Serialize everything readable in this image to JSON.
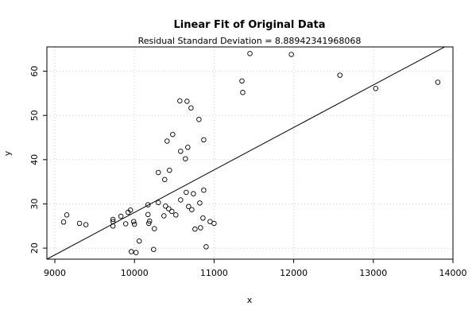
{
  "chart_data": {
    "type": "scatter",
    "title": "Linear Fit of Original Data",
    "subtitle": "Residual Standard Deviation =  8.88942341968068",
    "xlabel": "x",
    "ylabel": "y",
    "xlim": [
      8900,
      14000
    ],
    "ylim": [
      17.5,
      65.5
    ],
    "x_ticks": [
      9000,
      10000,
      11000,
      12000,
      13000,
      14000
    ],
    "y_ticks": [
      20,
      30,
      40,
      50,
      60
    ],
    "grid": true,
    "fit_line": {
      "x": [
        8900,
        14000
      ],
      "y": [
        17.5,
        66.5
      ]
    },
    "points": [
      {
        "x": 9110,
        "y": 25.9
      },
      {
        "x": 9150,
        "y": 27.5
      },
      {
        "x": 9310,
        "y": 25.6
      },
      {
        "x": 9390,
        "y": 25.3
      },
      {
        "x": 9730,
        "y": 26.5
      },
      {
        "x": 9730,
        "y": 26.0
      },
      {
        "x": 9730,
        "y": 25.0
      },
      {
        "x": 9830,
        "y": 27.2
      },
      {
        "x": 9890,
        "y": 25.5
      },
      {
        "x": 9920,
        "y": 28.1
      },
      {
        "x": 9950,
        "y": 28.6
      },
      {
        "x": 9960,
        "y": 19.2
      },
      {
        "x": 9990,
        "y": 26.0
      },
      {
        "x": 10000,
        "y": 25.4
      },
      {
        "x": 10020,
        "y": 19.0
      },
      {
        "x": 10060,
        "y": 21.6
      },
      {
        "x": 10170,
        "y": 29.8
      },
      {
        "x": 10170,
        "y": 27.6
      },
      {
        "x": 10180,
        "y": 25.6
      },
      {
        "x": 10190,
        "y": 26.1
      },
      {
        "x": 10240,
        "y": 19.7
      },
      {
        "x": 10250,
        "y": 24.4
      },
      {
        "x": 10300,
        "y": 37.1
      },
      {
        "x": 10300,
        "y": 30.3
      },
      {
        "x": 10370,
        "y": 27.3
      },
      {
        "x": 10380,
        "y": 35.5
      },
      {
        "x": 10390,
        "y": 29.5
      },
      {
        "x": 10410,
        "y": 44.2
      },
      {
        "x": 10430,
        "y": 28.9
      },
      {
        "x": 10440,
        "y": 37.6
      },
      {
        "x": 10470,
        "y": 28.3
      },
      {
        "x": 10480,
        "y": 45.7
      },
      {
        "x": 10520,
        "y": 27.5
      },
      {
        "x": 10570,
        "y": 53.3
      },
      {
        "x": 10580,
        "y": 30.9
      },
      {
        "x": 10580,
        "y": 41.9
      },
      {
        "x": 10640,
        "y": 40.2
      },
      {
        "x": 10650,
        "y": 32.6
      },
      {
        "x": 10660,
        "y": 53.2
      },
      {
        "x": 10670,
        "y": 42.8
      },
      {
        "x": 10680,
        "y": 29.4
      },
      {
        "x": 10710,
        "y": 51.7
      },
      {
        "x": 10720,
        "y": 28.7
      },
      {
        "x": 10740,
        "y": 32.3
      },
      {
        "x": 10760,
        "y": 24.3
      },
      {
        "x": 10810,
        "y": 49.1
      },
      {
        "x": 10820,
        "y": 30.2
      },
      {
        "x": 10830,
        "y": 24.6
      },
      {
        "x": 10860,
        "y": 26.8
      },
      {
        "x": 10870,
        "y": 33.1
      },
      {
        "x": 10870,
        "y": 44.5
      },
      {
        "x": 10900,
        "y": 20.3
      },
      {
        "x": 10950,
        "y": 26.0
      },
      {
        "x": 11000,
        "y": 25.6
      },
      {
        "x": 11350,
        "y": 57.8
      },
      {
        "x": 11360,
        "y": 55.2
      },
      {
        "x": 11450,
        "y": 64.0
      },
      {
        "x": 11970,
        "y": 63.8
      },
      {
        "x": 12580,
        "y": 59.1
      },
      {
        "x": 13030,
        "y": 56.1
      },
      {
        "x": 13810,
        "y": 57.5
      }
    ]
  }
}
